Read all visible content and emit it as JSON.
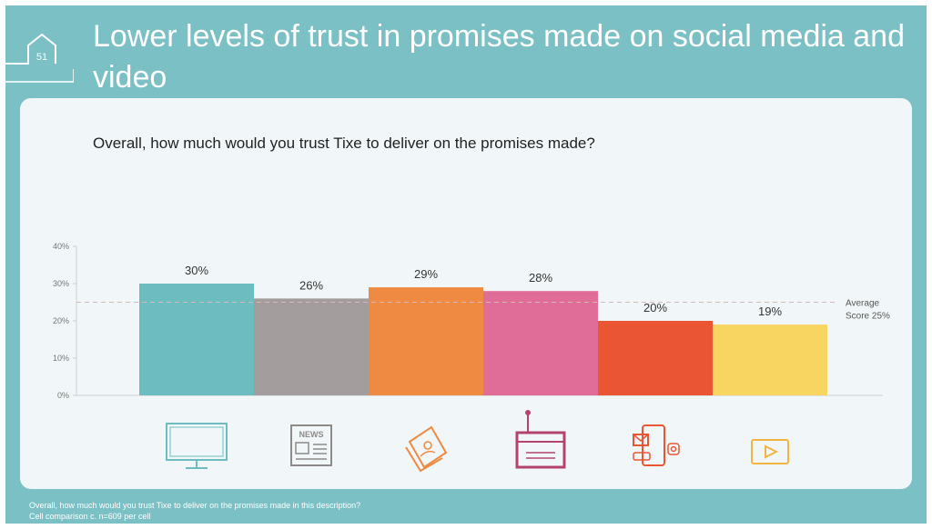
{
  "slide": {
    "number": "51",
    "title": "Lower levels of trust in promises made on social media and video"
  },
  "question": "Overall, how much would you trust Tixe to deliver on the promises made?",
  "footnote": {
    "line1": "Overall, how much would you trust Tixe to deliver on the promises made in this description?",
    "line2": "Cell comparison c. n=609 per cell"
  },
  "chart_data": {
    "type": "bar",
    "categories": [
      "tv",
      "newspaper",
      "magazine",
      "radio",
      "social",
      "video"
    ],
    "values": [
      30,
      26,
      29,
      28,
      20,
      19
    ],
    "data_labels": [
      "30%",
      "26%",
      "29%",
      "28%",
      "20%",
      "19%"
    ],
    "colors": [
      "#6dbcc0",
      "#a39d9d",
      "#ee8a41",
      "#e06c98",
      "#ea5533",
      "#f8d460"
    ],
    "icons": [
      "tv-icon",
      "newspaper-icon",
      "magazine-icon",
      "radio-icon",
      "social-media-icon",
      "video-play-icon"
    ],
    "icon_colors": [
      "#6dbcc0",
      "#8e8a8a",
      "#ee8a41",
      "#b5436f",
      "#ea5533",
      "#f2b640"
    ],
    "ylim": [
      0,
      40
    ],
    "yticks": [
      "0%",
      "10%",
      "20%",
      "30%",
      "40%"
    ],
    "average": {
      "value": 25,
      "label_line1": "Average",
      "label_line2": "Score 25%"
    },
    "grid": false
  }
}
